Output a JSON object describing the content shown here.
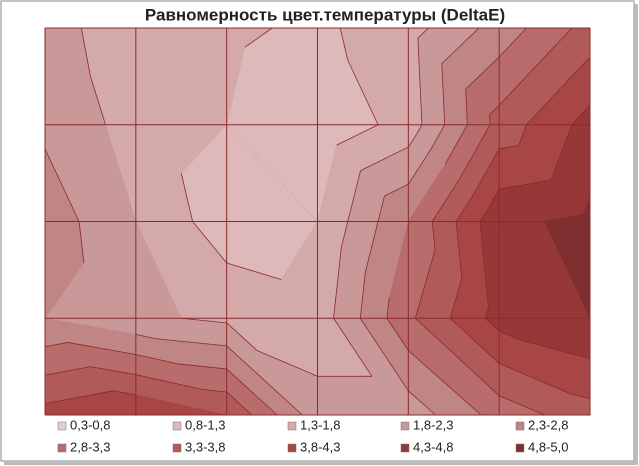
{
  "chart_data": {
    "type": "contour",
    "title": "Равномерность цвет.температуры (DeltaE)",
    "z": [
      [
        2.0,
        1.5,
        1.4,
        1.2,
        1.6,
        2.5,
        3.5
      ],
      [
        2.2,
        1.6,
        1.3,
        0.9,
        1.5,
        3.5,
        4.5
      ],
      [
        2.6,
        1.8,
        1.0,
        1.3,
        2.8,
        4.7,
        4.9
      ],
      [
        2.3,
        1.9,
        1.7,
        1.5,
        3.2,
        4.5,
        4.8
      ],
      [
        4.0,
        4.3,
        3.8,
        2.0,
        2.0,
        3.0,
        3.6
      ]
    ],
    "series": [
      {
        "name": "0,3-0,8",
        "color": "#e8cccc",
        "range": [
          0.3,
          0.8
        ]
      },
      {
        "name": "0,8-1,3",
        "color": "#ddb9b9",
        "range": [
          0.8,
          1.3
        ]
      },
      {
        "name": "1,3-1,8",
        "color": "#d4a9a9",
        "range": [
          1.3,
          1.8
        ]
      },
      {
        "name": "1,8-2,3",
        "color": "#c99898",
        "range": [
          1.8,
          2.3
        ]
      },
      {
        "name": "2,3-2,8",
        "color": "#c08585",
        "range": [
          2.3,
          2.8
        ]
      },
      {
        "name": "2,8-3,3",
        "color": "#b86c6c",
        "range": [
          2.8,
          3.3
        ]
      },
      {
        "name": "3,3-3,8",
        "color": "#b05a5a",
        "range": [
          3.3,
          3.8
        ]
      },
      {
        "name": "3,8-4,3",
        "color": "#a84646",
        "range": [
          3.8,
          4.3
        ]
      },
      {
        "name": "4,3-4,8",
        "color": "#963838",
        "range": [
          4.3,
          4.8
        ]
      },
      {
        "name": "4,8-5,0",
        "color": "#7e2e2e",
        "range": [
          4.8,
          5.0
        ]
      }
    ]
  }
}
